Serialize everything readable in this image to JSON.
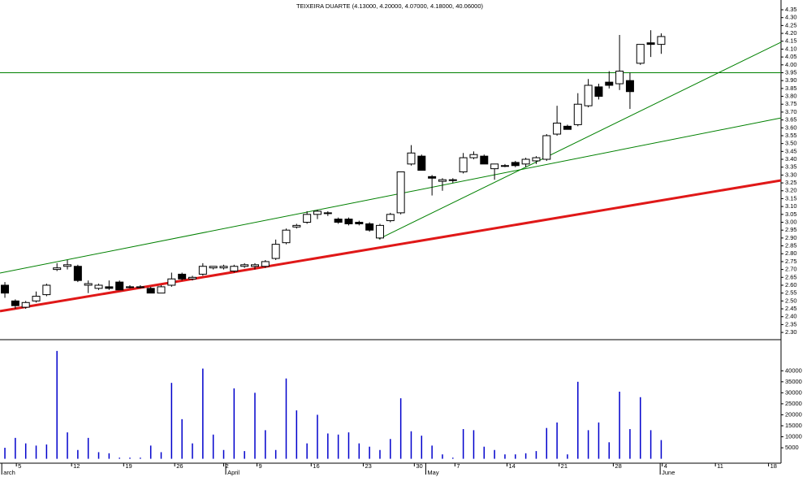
{
  "chart_data": {
    "type": "candlestick",
    "title": "TEIXEIRA DUARTE (4.13000, 4.20000, 4.07000, 4.18000, 40.06000)",
    "x": [
      0,
      1,
      2,
      3,
      4,
      5,
      6,
      7,
      8,
      9,
      10,
      11,
      12,
      13,
      14,
      15,
      16,
      17,
      18,
      19,
      20,
      21,
      22,
      23,
      24,
      25,
      26,
      27,
      28,
      29,
      30,
      31,
      32,
      33,
      34,
      35,
      36,
      37,
      38,
      39,
      40,
      41,
      42,
      43,
      44,
      45,
      46,
      47,
      48,
      49,
      50,
      51,
      52,
      53,
      54,
      55,
      56,
      57,
      58,
      59,
      60,
      61,
      62,
      63
    ],
    "open": [
      2.6,
      2.5,
      2.46,
      2.5,
      2.54,
      2.7,
      2.72,
      2.72,
      2.6,
      2.58,
      2.59,
      2.62,
      2.59,
      2.59,
      2.58,
      2.55,
      2.6,
      2.67,
      2.64,
      2.67,
      2.71,
      2.71,
      2.69,
      2.72,
      2.72,
      2.72,
      2.77,
      2.87,
      2.97,
      3.0,
      3.05,
      3.06,
      3.02,
      3.02,
      3.0,
      2.99,
      2.9,
      3.01,
      3.06,
      3.37,
      3.42,
      3.29,
      3.26,
      3.27,
      3.32,
      3.41,
      3.42,
      3.34,
      3.36,
      3.38,
      3.37,
      3.39,
      3.4,
      3.56,
      3.61,
      3.62,
      3.74,
      3.86,
      3.89,
      3.88,
      3.9,
      4.01,
      4.14,
      4.13
    ],
    "high": [
      2.62,
      2.51,
      2.5,
      2.56,
      2.61,
      2.74,
      2.76,
      2.73,
      2.63,
      2.61,
      2.63,
      2.63,
      2.6,
      2.6,
      2.59,
      2.6,
      2.68,
      2.68,
      2.66,
      2.74,
      2.72,
      2.73,
      2.73,
      2.74,
      2.74,
      2.76,
      2.89,
      2.96,
      2.99,
      3.07,
      3.08,
      3.07,
      3.03,
      3.03,
      3.01,
      3.0,
      2.99,
      3.06,
      3.32,
      3.49,
      3.43,
      3.3,
      3.28,
      3.28,
      3.44,
      3.45,
      3.43,
      3.37,
      3.37,
      3.39,
      3.41,
      3.42,
      3.56,
      3.74,
      3.62,
      3.82,
      3.91,
      3.88,
      3.96,
      4.19,
      3.95,
      4.13,
      4.22,
      4.2
    ],
    "low": [
      2.52,
      2.45,
      2.45,
      2.49,
      2.53,
      2.69,
      2.7,
      2.62,
      2.55,
      2.57,
      2.57,
      2.57,
      2.58,
      2.58,
      2.55,
      2.55,
      2.59,
      2.63,
      2.63,
      2.66,
      2.7,
      2.7,
      2.68,
      2.71,
      2.7,
      2.71,
      2.76,
      2.86,
      2.96,
      2.99,
      3.02,
      3.04,
      2.99,
      2.98,
      2.98,
      2.94,
      2.89,
      3.0,
      3.05,
      3.36,
      3.33,
      3.17,
      3.2,
      3.25,
      3.31,
      3.4,
      3.37,
      3.27,
      3.35,
      3.35,
      3.35,
      3.37,
      3.39,
      3.55,
      3.59,
      3.61,
      3.73,
      3.78,
      3.85,
      3.84,
      3.72,
      4.0,
      4.05,
      4.07
    ],
    "close": [
      2.55,
      2.47,
      2.49,
      2.53,
      2.6,
      2.71,
      2.73,
      2.63,
      2.61,
      2.6,
      2.58,
      2.57,
      2.59,
      2.59,
      2.55,
      2.59,
      2.64,
      2.64,
      2.65,
      2.72,
      2.72,
      2.72,
      2.72,
      2.73,
      2.73,
      2.75,
      2.86,
      2.95,
      2.98,
      3.05,
      3.07,
      3.06,
      3.0,
      2.99,
      2.99,
      2.95,
      2.98,
      3.05,
      3.32,
      3.44,
      3.33,
      3.28,
      3.27,
      3.27,
      3.41,
      3.43,
      3.37,
      3.37,
      3.36,
      3.36,
      3.4,
      3.41,
      3.55,
      3.63,
      3.59,
      3.75,
      3.87,
      3.8,
      3.87,
      3.96,
      3.83,
      4.13,
      4.13,
      4.18
    ],
    "up_color": "#ffffff",
    "down_color": "#000000",
    "lines": [
      {
        "color": "#008000",
        "width": 1,
        "x": [
          -0.47,
          74.5
        ],
        "y": [
          3.95,
          3.95
        ]
      },
      {
        "color": "#008000",
        "width": 1,
        "x": [
          -0.47,
          74.5
        ],
        "y": [
          2.677,
          3.663
        ]
      },
      {
        "color": "#008000",
        "width": 1,
        "x": [
          35.9,
          74.5
        ],
        "y": [
          2.894,
          4.144
        ]
      },
      {
        "color": "#e01818",
        "width": 3,
        "x": [
          -0.47,
          74.5
        ],
        "y": [
          2.435,
          3.266
        ]
      }
    ],
    "xlim": [
      -0.47,
      74.5
    ],
    "ylim": [
      2.254,
      4.412
    ],
    "yticks": [
      {
        "value": 2.3,
        "label": "2.30"
      },
      2.35,
      {
        "value": 2.4,
        "label": "2.40"
      },
      2.45,
      {
        "value": 2.5,
        "label": "2.50"
      },
      2.55,
      {
        "value": 2.6,
        "label": "2.60"
      },
      2.65,
      {
        "value": 2.7,
        "label": "2.70"
      },
      2.75,
      {
        "value": 2.8,
        "label": "2.80"
      },
      2.85,
      {
        "value": 2.9,
        "label": "2.90"
      },
      2.95,
      {
        "value": 3,
        "label": "3.00"
      },
      3.05,
      {
        "value": 3.1,
        "label": "3.10"
      },
      3.15,
      {
        "value": 3.2,
        "label": "3.20"
      },
      3.25,
      {
        "value": 3.3,
        "label": "3.30"
      },
      3.35,
      {
        "value": 3.4,
        "label": "3.40"
      },
      3.45,
      {
        "value": 3.5,
        "label": "3.50"
      },
      3.55,
      {
        "value": 3.6,
        "label": "3.60"
      },
      3.65,
      {
        "value": 3.7,
        "label": "3.70"
      },
      3.75,
      {
        "value": 3.8,
        "label": "3.80"
      },
      3.85,
      {
        "value": 3.9,
        "label": "3.90"
      },
      3.95,
      {
        "value": 4,
        "label": "4.00"
      },
      4.05,
      {
        "value": 4.1,
        "label": "4.10"
      },
      4.15,
      {
        "value": 4.2,
        "label": "4.20"
      },
      4.25,
      {
        "value": 4.3,
        "label": "4.30"
      },
      4.35
    ],
    "xticks": [
      {
        "value": 1.1,
        "label": "5"
      },
      {
        "value": 6.4,
        "label": "12"
      },
      {
        "value": 11.4,
        "label": "19"
      },
      {
        "value": 16.3,
        "label": "26"
      },
      {
        "value": 21.0,
        "label": "2"
      },
      {
        "value": 24.2,
        "label": "9"
      },
      {
        "value": 29.4,
        "label": "16"
      },
      {
        "value": 34.4,
        "label": "23"
      },
      {
        "value": 39.3,
        "label": "30"
      },
      {
        "value": 43.2,
        "label": "7"
      },
      {
        "value": 48.2,
        "label": "14"
      },
      {
        "value": 53.2,
        "label": "21"
      },
      {
        "value": 58.4,
        "label": "28"
      },
      {
        "value": 63.1,
        "label": "4"
      },
      {
        "value": 68.2,
        "label": "11"
      },
      {
        "value": 73.3,
        "label": "18"
      }
    ],
    "month_ticks": [
      {
        "value": -0.3,
        "label": "arch"
      },
      {
        "value": 21.2,
        "label": "April"
      },
      {
        "value": 40.4,
        "label": "May"
      },
      {
        "value": 62.9,
        "label": "June"
      }
    ],
    "volume": {
      "color": "#0000cc",
      "values": [
        5000,
        9500,
        7000,
        6000,
        6500,
        49000,
        12000,
        4000,
        9500,
        3000,
        2500,
        500,
        500,
        500,
        6000,
        3000,
        34500,
        18000,
        7000,
        41000,
        11000,
        4000,
        32000,
        3500,
        30000,
        13000,
        4000,
        36500,
        22000,
        7000,
        20000,
        11500,
        11000,
        12000,
        7000,
        5500,
        4000,
        9000,
        27500,
        12500,
        10500,
        6000,
        2000,
        500,
        13500,
        13000,
        5500,
        4000,
        2000,
        2000,
        2500,
        3500,
        14000,
        16500,
        2000,
        35000,
        13000,
        16500,
        7500,
        30500,
        13500,
        28000,
        13000,
        8500
      ],
      "ylim": [
        -2000,
        53400
      ],
      "yticks": [
        5000,
        10000,
        15000,
        20000,
        25000,
        30000,
        35000,
        40000
      ]
    }
  }
}
